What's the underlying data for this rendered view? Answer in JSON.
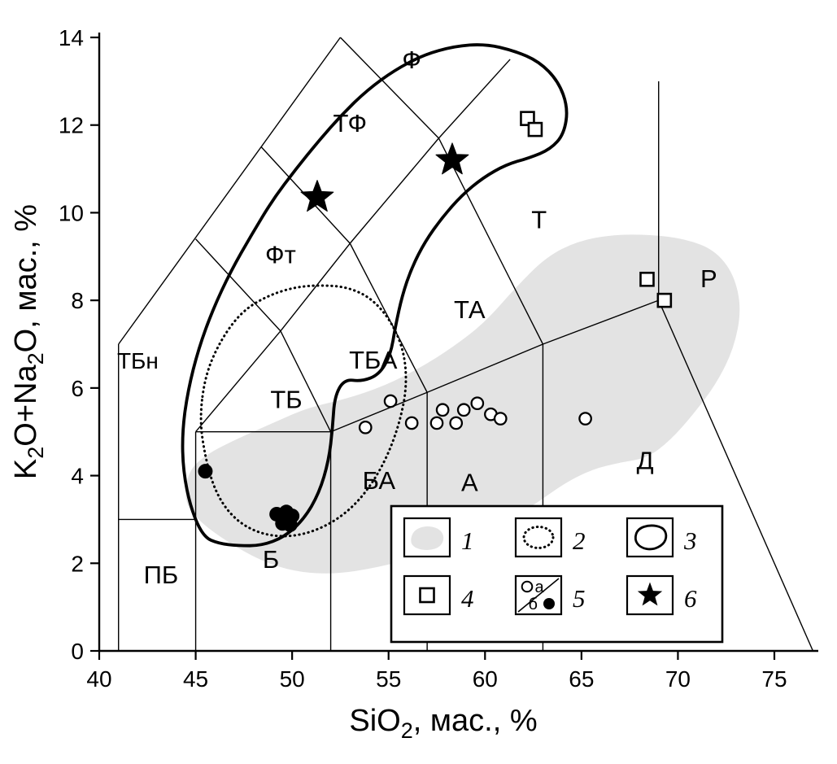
{
  "figure": {
    "kind": "TAS classification diagram (total alkali vs silica)",
    "background": "#ffffff"
  },
  "chart_data": {
    "type": "scatter",
    "title": "",
    "xlabel": {
      "text": "SiO2, мас., %",
      "parts": [
        {
          "t": "SiO"
        },
        {
          "t": "2",
          "sub": true
        },
        {
          "t": ", мас., %"
        }
      ]
    },
    "ylabel": {
      "text": "K2O+Na2O, мас., %",
      "parts": [
        {
          "t": "K"
        },
        {
          "t": "2",
          "sub": true
        },
        {
          "t": "O+Na"
        },
        {
          "t": "2",
          "sub": true
        },
        {
          "t": "O, мас., %"
        }
      ]
    },
    "xlim": [
      40,
      77
    ],
    "ylim": [
      0,
      14
    ],
    "x_ticks": [
      40,
      45,
      50,
      55,
      60,
      65,
      70,
      75
    ],
    "y_ticks": [
      0,
      2,
      4,
      6,
      8,
      10,
      12,
      14
    ],
    "grid": false,
    "colors": {
      "line": "#000000",
      "gray_field": "#e3e3e3",
      "background": "#ffffff"
    },
    "boundary_segments": [
      [
        [
          41,
          0
        ],
        [
          41,
          7
        ]
      ],
      [
        [
          41,
          7
        ],
        [
          52.5,
          14
        ]
      ],
      [
        [
          41,
          3
        ],
        [
          45,
          3
        ]
      ],
      [
        [
          45,
          0
        ],
        [
          45,
          5
        ]
      ],
      [
        [
          45,
          5
        ],
        [
          52,
          5
        ]
      ],
      [
        [
          52,
          0
        ],
        [
          52,
          5
        ]
      ],
      [
        [
          57,
          0
        ],
        [
          57,
          5.9
        ]
      ],
      [
        [
          63,
          0
        ],
        [
          63,
          7
        ]
      ],
      [
        [
          52,
          5
        ],
        [
          57,
          5.9
        ]
      ],
      [
        [
          57,
          5.9
        ],
        [
          63,
          7
        ]
      ],
      [
        [
          63,
          7
        ],
        [
          69,
          8
        ]
      ],
      [
        [
          69,
          8
        ],
        [
          77,
          0
        ]
      ],
      [
        [
          69,
          8
        ],
        [
          69,
          13
        ]
      ],
      [
        [
          45,
          5
        ],
        [
          49.4,
          7.3
        ]
      ],
      [
        [
          49.4,
          7.3
        ],
        [
          52,
          5
        ]
      ],
      [
        [
          49.4,
          7.3
        ],
        [
          53,
          9.3
        ]
      ],
      [
        [
          53,
          9.3
        ],
        [
          57,
          5.9
        ]
      ],
      [
        [
          53,
          9.3
        ],
        [
          57.6,
          11.7
        ]
      ],
      [
        [
          57.6,
          11.7
        ],
        [
          63,
          7
        ]
      ],
      [
        [
          45,
          9.4
        ],
        [
          49.4,
          7.3
        ]
      ],
      [
        [
          48.4,
          11.5
        ],
        [
          53,
          9.3
        ]
      ],
      [
        [
          52.5,
          14
        ],
        [
          57.6,
          11.7
        ]
      ],
      [
        [
          57.6,
          11.7
        ],
        [
          61.3,
          13.5
        ]
      ]
    ],
    "field_labels": [
      {
        "text": "Ф",
        "x": 56.2,
        "y": 13.5
      },
      {
        "text": "ТФ",
        "x": 53.0,
        "y": 12.05
      },
      {
        "text": "Фт",
        "x": 49.4,
        "y": 9.05
      },
      {
        "text": "ТБн",
        "x": 42.0,
        "y": 6.65,
        "size": 28
      },
      {
        "text": "ТБ",
        "x": 49.7,
        "y": 5.75
      },
      {
        "text": "ТБА",
        "x": 54.2,
        "y": 6.65
      },
      {
        "text": "ТА",
        "x": 59.2,
        "y": 7.8
      },
      {
        "text": "Т",
        "x": 62.8,
        "y": 9.85
      },
      {
        "text": "Р",
        "x": 71.6,
        "y": 8.5
      },
      {
        "text": "БА",
        "x": 54.5,
        "y": 3.9
      },
      {
        "text": "А",
        "x": 59.2,
        "y": 3.85
      },
      {
        "text": "Д",
        "x": 68.3,
        "y": 4.35
      },
      {
        "text": "ПБ",
        "x": 43.2,
        "y": 1.75
      },
      {
        "text": "Б",
        "x": 48.9,
        "y": 2.1
      }
    ],
    "regions": [
      {
        "name": "shaded-field",
        "legend_num": "1",
        "style": "gray-fill",
        "points": [
          [
            44.4,
            3.4
          ],
          [
            44.6,
            4.1
          ],
          [
            45.6,
            4.5
          ],
          [
            47.2,
            4.85
          ],
          [
            49.0,
            5.2
          ],
          [
            50.8,
            5.55
          ],
          [
            52.8,
            5.75
          ],
          [
            54.8,
            6.05
          ],
          [
            56.6,
            6.45
          ],
          [
            58.4,
            6.95
          ],
          [
            60.0,
            7.5
          ],
          [
            61.6,
            8.3
          ],
          [
            63.2,
            9.0
          ],
          [
            64.8,
            9.35
          ],
          [
            66.6,
            9.5
          ],
          [
            68.6,
            9.5
          ],
          [
            70.4,
            9.4
          ],
          [
            71.9,
            9.15
          ],
          [
            72.9,
            8.6
          ],
          [
            73.3,
            7.8
          ],
          [
            72.9,
            6.9
          ],
          [
            72.0,
            6.1
          ],
          [
            70.8,
            5.4
          ],
          [
            69.6,
            4.8
          ],
          [
            68.4,
            4.4
          ],
          [
            67.0,
            4.3
          ],
          [
            65.6,
            4.15
          ],
          [
            64.2,
            3.85
          ],
          [
            62.6,
            3.35
          ],
          [
            60.8,
            2.85
          ],
          [
            58.8,
            2.45
          ],
          [
            56.6,
            2.15
          ],
          [
            54.4,
            1.9
          ],
          [
            52.2,
            1.75
          ],
          [
            50.2,
            1.8
          ],
          [
            48.4,
            2.05
          ],
          [
            46.6,
            2.5
          ],
          [
            45.2,
            2.95
          ]
        ]
      },
      {
        "name": "dotted-field",
        "legend_num": "2",
        "style": "dotted-outline",
        "points": [
          [
            45.2,
            5.3
          ],
          [
            45.5,
            6.3
          ],
          [
            46.3,
            7.1
          ],
          [
            47.4,
            7.75
          ],
          [
            48.7,
            8.1
          ],
          [
            50.1,
            8.3
          ],
          [
            51.5,
            8.35
          ],
          [
            52.9,
            8.3
          ],
          [
            54.1,
            8.05
          ],
          [
            55.1,
            7.55
          ],
          [
            55.8,
            6.85
          ],
          [
            55.95,
            6.05
          ],
          [
            55.6,
            5.25
          ],
          [
            55.0,
            4.5
          ],
          [
            54.2,
            3.85
          ],
          [
            53.2,
            3.3
          ],
          [
            52.0,
            2.9
          ],
          [
            50.6,
            2.65
          ],
          [
            49.2,
            2.6
          ],
          [
            47.9,
            2.75
          ],
          [
            46.8,
            3.1
          ],
          [
            46.0,
            3.65
          ],
          [
            45.5,
            4.4
          ]
        ]
      },
      {
        "name": "solid-field",
        "legend_num": "3",
        "style": "solid-outline",
        "points": [
          [
            45.4,
            2.6
          ],
          [
            44.75,
            3.25
          ],
          [
            44.35,
            4.1
          ],
          [
            44.3,
            5.0
          ],
          [
            44.6,
            5.95
          ],
          [
            45.15,
            6.9
          ],
          [
            45.9,
            7.8
          ],
          [
            46.8,
            8.65
          ],
          [
            47.9,
            9.5
          ],
          [
            49.0,
            10.3
          ],
          [
            50.2,
            11.0
          ],
          [
            51.4,
            11.65
          ],
          [
            52.6,
            12.25
          ],
          [
            53.9,
            12.8
          ],
          [
            55.3,
            13.25
          ],
          [
            56.8,
            13.6
          ],
          [
            58.4,
            13.8
          ],
          [
            60.0,
            13.85
          ],
          [
            61.5,
            13.7
          ],
          [
            62.8,
            13.45
          ],
          [
            63.8,
            13.0
          ],
          [
            64.3,
            12.4
          ],
          [
            64.1,
            11.8
          ],
          [
            63.4,
            11.45
          ],
          [
            62.3,
            11.25
          ],
          [
            61.1,
            11.1
          ],
          [
            59.9,
            10.8
          ],
          [
            58.8,
            10.4
          ],
          [
            57.8,
            9.9
          ],
          [
            56.9,
            9.35
          ],
          [
            56.2,
            8.75
          ],
          [
            55.7,
            8.1
          ],
          [
            55.35,
            7.4
          ],
          [
            55.1,
            6.75
          ],
          [
            54.5,
            6.3
          ],
          [
            53.6,
            6.15
          ],
          [
            52.7,
            6.2
          ],
          [
            52.2,
            5.8
          ],
          [
            52.1,
            5.1
          ],
          [
            51.9,
            4.35
          ],
          [
            51.4,
            3.6
          ],
          [
            50.6,
            3.0
          ],
          [
            49.6,
            2.6
          ],
          [
            48.4,
            2.4
          ],
          [
            47.2,
            2.4
          ],
          [
            46.2,
            2.45
          ]
        ]
      }
    ],
    "series": [
      {
        "name": "open-squares",
        "legend_num": "4",
        "symbol": "open-square",
        "points": [
          [
            62.2,
            12.15
          ],
          [
            62.6,
            11.9
          ],
          [
            68.4,
            8.48
          ],
          [
            69.3,
            8.0
          ]
        ]
      },
      {
        "name": "open-circles",
        "legend_num": "5а",
        "symbol": "open-circle",
        "points": [
          [
            53.8,
            5.1
          ],
          [
            55.1,
            5.7
          ],
          [
            56.2,
            5.2
          ],
          [
            57.5,
            5.2
          ],
          [
            57.8,
            5.5
          ],
          [
            58.5,
            5.2
          ],
          [
            58.9,
            5.5
          ],
          [
            59.6,
            5.65
          ],
          [
            60.3,
            5.4
          ],
          [
            60.8,
            5.3
          ],
          [
            65.2,
            5.3
          ]
        ]
      },
      {
        "name": "filled-circles",
        "legend_num": "5б",
        "symbol": "filled-circle",
        "points": [
          [
            45.5,
            4.1
          ],
          [
            49.2,
            3.12
          ],
          [
            49.7,
            3.17
          ],
          [
            50.0,
            3.08
          ],
          [
            49.5,
            2.91
          ],
          [
            49.9,
            2.88
          ]
        ]
      },
      {
        "name": "stars",
        "legend_num": "6",
        "symbol": "filled-star",
        "points": [
          [
            51.3,
            10.35
          ],
          [
            58.3,
            11.2
          ]
        ]
      }
    ],
    "legend": {
      "position": "bottom-right",
      "items": [
        {
          "num": "1",
          "symbol": "gray-field"
        },
        {
          "num": "2",
          "symbol": "dotted-field"
        },
        {
          "num": "3",
          "symbol": "solid-field"
        },
        {
          "num": "4",
          "symbol": "open-square"
        },
        {
          "num": "5",
          "symbol": "circle-pair",
          "sub_a": "а",
          "sub_b": "б"
        },
        {
          "num": "6",
          "symbol": "filled-star"
        }
      ]
    }
  }
}
